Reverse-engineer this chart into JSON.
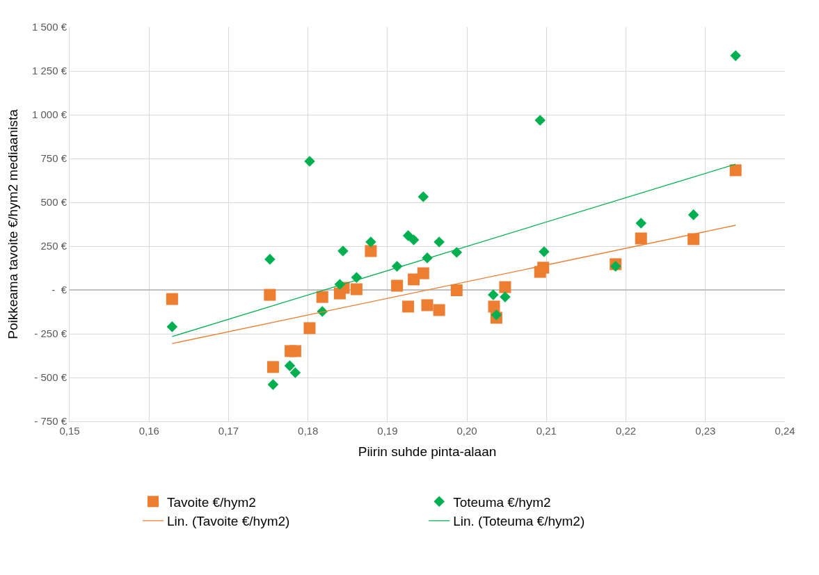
{
  "chart_data": {
    "type": "scatter",
    "xlabel": "Piirin suhde pinta-alaan",
    "ylabel": "Poikkeama tavoite €/hym2 mediaanista",
    "xlim": [
      0.15,
      0.24
    ],
    "xticks": [
      {
        "value": 0.15,
        "label": "0,15"
      },
      {
        "value": 0.16,
        "label": "0,16"
      },
      {
        "value": 0.17,
        "label": "0,17"
      },
      {
        "value": 0.18,
        "label": "0,18"
      },
      {
        "value": 0.19,
        "label": "0,19"
      },
      {
        "value": 0.2,
        "label": "0,20"
      },
      {
        "value": 0.21,
        "label": "0,21"
      },
      {
        "value": 0.22,
        "label": "0,22"
      },
      {
        "value": 0.23,
        "label": "0,23"
      },
      {
        "value": 0.24,
        "label": "0,24"
      }
    ],
    "ylim": [
      -750,
      1500
    ],
    "yticks": [
      {
        "value": -750,
        "label": "- 750 €"
      },
      {
        "value": -500,
        "label": "- 500 €"
      },
      {
        "value": -250,
        "label": "- 250 €"
      },
      {
        "value": 0,
        "label": "-  €"
      },
      {
        "value": 250,
        "label": "250 €"
      },
      {
        "value": 500,
        "label": "500 €"
      },
      {
        "value": 750,
        "label": "750 €"
      },
      {
        "value": 1000,
        "label": "1 000 €"
      },
      {
        "value": 1250,
        "label": "1 250 €"
      },
      {
        "value": 1500,
        "label": "1 500 €"
      }
    ],
    "grid": true,
    "legend": "bottom",
    "series": [
      {
        "name": "Tavoite €/hym2",
        "marker": "square",
        "color": "#ed7d31",
        "x": [
          0.1629,
          0.1752,
          0.1756,
          0.1778,
          0.1784,
          0.1802,
          0.1818,
          0.184,
          0.1845,
          0.1861,
          0.1879,
          0.1912,
          0.1926,
          0.1933,
          0.1945,
          0.195,
          0.1965,
          0.1987,
          0.2034,
          0.2037,
          0.2048,
          0.2092,
          0.2096,
          0.2187,
          0.2219,
          0.2285,
          0.2338
        ],
        "values": [
          -52,
          -28,
          -440,
          -349,
          -349,
          -218,
          -40,
          -20,
          12,
          4,
          222,
          24,
          -95,
          60,
          95,
          -87,
          -115,
          -2,
          -95,
          -159,
          16,
          103,
          127,
          147,
          294,
          290,
          683
        ]
      },
      {
        "name": "Toteuma €/hym2",
        "marker": "diamond",
        "color": "#00b050",
        "x": [
          0.1629,
          0.1752,
          0.1756,
          0.1777,
          0.1784,
          0.1802,
          0.1818,
          0.184,
          0.1844,
          0.1861,
          0.1879,
          0.1912,
          0.1926,
          0.1933,
          0.1945,
          0.195,
          0.1965,
          0.1987,
          0.2033,
          0.2037,
          0.2048,
          0.2092,
          0.2097,
          0.2187,
          0.2219,
          0.2285,
          0.2338
        ],
        "values": [
          -210,
          175,
          -540,
          -433,
          -472,
          734,
          -123,
          32,
          222,
          71,
          274,
          135,
          310,
          286,
          532,
          183,
          274,
          214,
          -28,
          -143,
          -40,
          968,
          218,
          135,
          381,
          429,
          1337
        ]
      },
      {
        "name": "Lin. (Tavoite €/hym2)",
        "type": "line",
        "marker": "none",
        "line_style": "solid",
        "color": "#ed7d31",
        "x": [
          0.1629,
          0.2338
        ],
        "values": [
          -306,
          369
        ]
      },
      {
        "name": "Lin. (Toteuma €/hym2)",
        "type": "line",
        "marker": "none",
        "line_style": "solid",
        "color": "#00b050",
        "x": [
          0.1629,
          0.2338
        ],
        "values": [
          -266,
          718
        ]
      }
    ]
  }
}
